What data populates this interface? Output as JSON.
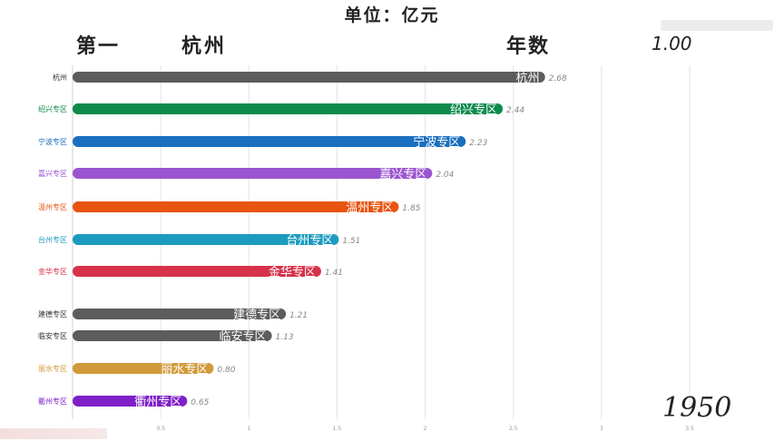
{
  "header": {
    "unit": "单位：亿元",
    "rank_label": "第一",
    "leader_name": "杭州",
    "years_label": "年数",
    "years_value": "1.00"
  },
  "year": "1950",
  "chart_data": {
    "type": "bar",
    "orientation": "horizontal",
    "categories": [
      "杭州",
      "绍兴专区",
      "宁波专区",
      "嘉兴专区",
      "温州专区",
      "台州专区",
      "金华专区",
      "建德专区",
      "临安专区",
      "丽水专区",
      "衢州专区"
    ],
    "values": [
      2.68,
      2.44,
      2.23,
      2.04,
      1.85,
      1.51,
      1.41,
      1.21,
      1.13,
      0.8,
      0.65
    ],
    "value_labels": [
      "2.68",
      "2.44",
      "2.23",
      "2.04",
      "1.85",
      "1.51",
      "1.41",
      "1.21",
      "1.13",
      "0.80",
      "0.65"
    ],
    "colors": [
      "#5c5c5c",
      "#0e8a4a",
      "#1a6fbf",
      "#9b55d0",
      "#e8540f",
      "#1c9bbf",
      "#d7324a",
      "#5c5c5c",
      "#5c5c5c",
      "#d19a3a",
      "#7e1fc7"
    ],
    "xlim": [
      0,
      3.5
    ],
    "xticks": [
      "0.5",
      "1",
      "1.5",
      "2",
      "2.5",
      "3",
      "3.5"
    ],
    "xtick_values": [
      0.5,
      1,
      1.5,
      2,
      2.5,
      3,
      3.5
    ],
    "grid": true
  }
}
